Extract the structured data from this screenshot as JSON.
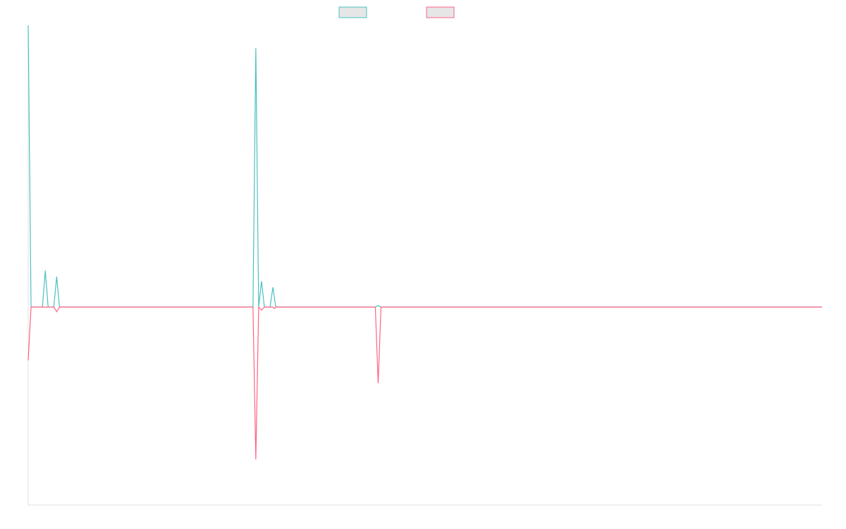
{
  "chart_data": {
    "type": "line",
    "title": "",
    "xlabel": "",
    "ylabel": "",
    "x_range": [
      0,
      279
    ],
    "ylim": [
      -1.3,
      1.85
    ],
    "grid": false,
    "legend_placement": "top-center",
    "series": [
      {
        "color": "#4bc0c0",
        "points": [
          [
            0,
            1.85
          ],
          [
            1,
            0
          ],
          [
            5,
            0
          ],
          [
            6,
            0.24
          ],
          [
            7,
            0
          ],
          [
            9,
            0
          ],
          [
            10,
            0.2
          ],
          [
            11,
            0
          ],
          [
            79,
            0
          ],
          [
            80,
            1.7
          ],
          [
            81,
            0
          ],
          [
            82,
            0.17
          ],
          [
            83,
            0
          ],
          [
            85,
            0
          ],
          [
            86,
            0.13
          ],
          [
            87,
            0
          ],
          [
            122,
            0
          ],
          [
            123,
            0.01
          ],
          [
            124,
            0
          ],
          [
            279,
            0
          ]
        ]
      },
      {
        "color": "#ff6384",
        "points": [
          [
            0,
            -0.35
          ],
          [
            1,
            0
          ],
          [
            9,
            0
          ],
          [
            10,
            -0.03
          ],
          [
            11,
            0
          ],
          [
            79,
            0
          ],
          [
            80,
            -1.0
          ],
          [
            81,
            0
          ],
          [
            82,
            -0.02
          ],
          [
            83,
            0
          ],
          [
            86,
            0
          ],
          [
            86.5,
            -0.01
          ],
          [
            87,
            0
          ],
          [
            122,
            0
          ],
          [
            123,
            -0.5
          ],
          [
            124,
            0
          ],
          [
            279,
            0
          ]
        ]
      }
    ]
  }
}
